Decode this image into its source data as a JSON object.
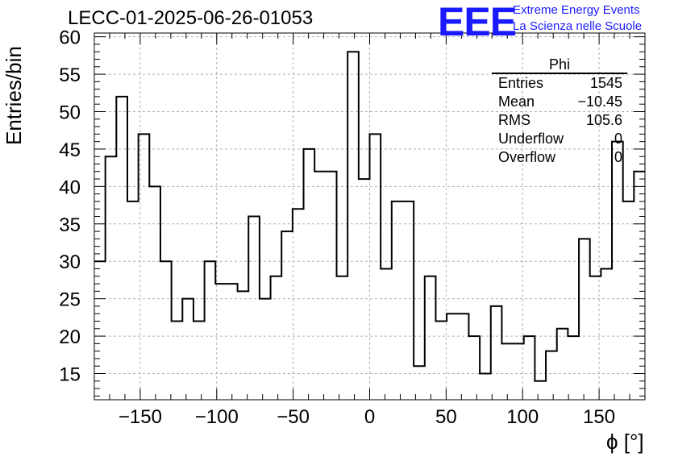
{
  "title": "LECC-01-2025-06-26-01053",
  "logo": {
    "text": "EEE",
    "line1": "Extreme Energy Events",
    "line2": "La Scienza nelle Scuole",
    "color": "#1a1aff"
  },
  "stats": {
    "name": "Phi",
    "rows": [
      {
        "label": "Entries",
        "value": "1545"
      },
      {
        "label": "Mean",
        "value": "−10.45"
      },
      {
        "label": "RMS",
        "value": "105.6"
      },
      {
        "label": "Underflow",
        "value": "0"
      },
      {
        "label": "Overflow",
        "value": "0"
      }
    ]
  },
  "chart_data": {
    "type": "histogram",
    "title": "LECC-01-2025-06-26-01053",
    "xlabel": "ϕ [°]",
    "ylabel": "Entries/bin",
    "xlim": [
      -180,
      180
    ],
    "ylim": [
      11.5,
      60.5
    ],
    "grid": true,
    "bin_edges_start": -180,
    "bin_width": 7.2,
    "values": [
      30,
      44,
      52,
      38,
      47,
      40,
      30,
      22,
      25,
      22,
      30,
      27,
      27,
      26,
      36,
      25,
      28,
      34,
      37,
      45,
      42,
      42,
      28,
      58,
      41,
      47,
      29,
      38,
      38,
      16,
      28,
      22,
      23,
      23,
      20,
      15,
      24,
      19,
      19,
      20,
      14,
      18,
      21,
      20,
      33,
      28,
      29,
      46,
      38,
      42
    ],
    "x_ticks": [
      -150,
      -100,
      -50,
      0,
      50,
      100,
      150
    ],
    "x_tick_labels": [
      "−150",
      "−100",
      "−50",
      "0",
      "50",
      "100",
      "150"
    ],
    "y_ticks": [
      15,
      20,
      25,
      30,
      35,
      40,
      45,
      50,
      55,
      60
    ],
    "y_tick_labels": [
      "15",
      "20",
      "25",
      "30",
      "35",
      "40",
      "45",
      "50",
      "55",
      "60"
    ],
    "line_color": "#000000"
  }
}
